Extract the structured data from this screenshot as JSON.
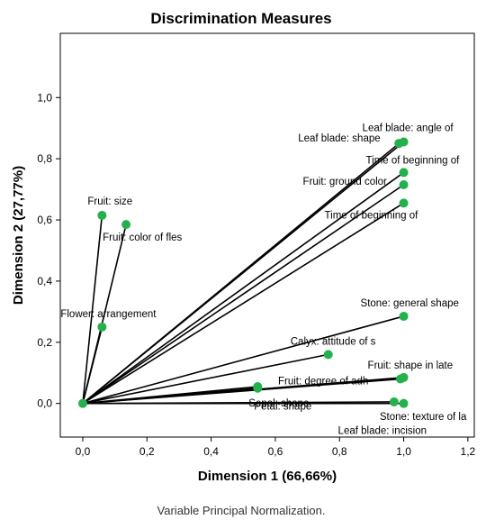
{
  "chart_data": {
    "type": "scatter",
    "title": "Discrimination Measures",
    "xlabel": "Dimension 1 (66,66%)",
    "ylabel": "Dimension 2 (27,77%)",
    "footnote": "Variable Principal Normalization.",
    "xlim": [
      -0.07,
      1.22
    ],
    "ylim": [
      -0.11,
      1.21
    ],
    "x_ticks": [
      "0,0",
      "0,2",
      "0,4",
      "0,6",
      "0,8",
      "1,0",
      "1,2"
    ],
    "x_tick_values": [
      0.0,
      0.2,
      0.4,
      0.6,
      0.8,
      1.0,
      1.2
    ],
    "y_ticks": [
      "0,0",
      "0,2",
      "0,4",
      "0,6",
      "0,8",
      "1,0"
    ],
    "y_tick_values": [
      0.0,
      0.2,
      0.4,
      0.6,
      0.8,
      1.0
    ],
    "point_color": "#22b14c",
    "vectors_from_origin": true,
    "points": [
      {
        "label": "Leaf blade: angle of",
        "x": 1.0,
        "y": 0.855
      },
      {
        "label": "Leaf blade: shape",
        "x": 0.985,
        "y": 0.85
      },
      {
        "label": "Time of beginning of",
        "x": 1.0,
        "y": 0.755
      },
      {
        "label": "Fruit: ground color",
        "x": 1.0,
        "y": 0.715
      },
      {
        "label": "Time of beginning of",
        "x": 1.0,
        "y": 0.655
      },
      {
        "label": "Fruit: size",
        "x": 0.06,
        "y": 0.615
      },
      {
        "label": "Fruit: color of fles",
        "x": 0.135,
        "y": 0.585
      },
      {
        "label": "Flower: arrangement",
        "x": 0.06,
        "y": 0.25
      },
      {
        "label": "Stone: general shape",
        "x": 1.0,
        "y": 0.285
      },
      {
        "label": "Calyx: attitude of s",
        "x": 0.765,
        "y": 0.16
      },
      {
        "label": "Fruit: shape in late",
        "x": 1.0,
        "y": 0.085
      },
      {
        "label": "Fruit: degree of adh",
        "x": 0.99,
        "y": 0.08
      },
      {
        "label": "Sepal: shape",
        "x": 0.545,
        "y": 0.055
      },
      {
        "label": "Petal: shape",
        "x": 0.545,
        "y": 0.05
      },
      {
        "label": "Stone: texture of la",
        "x": 0.97,
        "y": 0.005
      },
      {
        "label": "Leaf blade: incision",
        "x": 1.0,
        "y": 0.0
      },
      {
        "label": "",
        "x": 0.0,
        "y": 0.0
      }
    ]
  }
}
